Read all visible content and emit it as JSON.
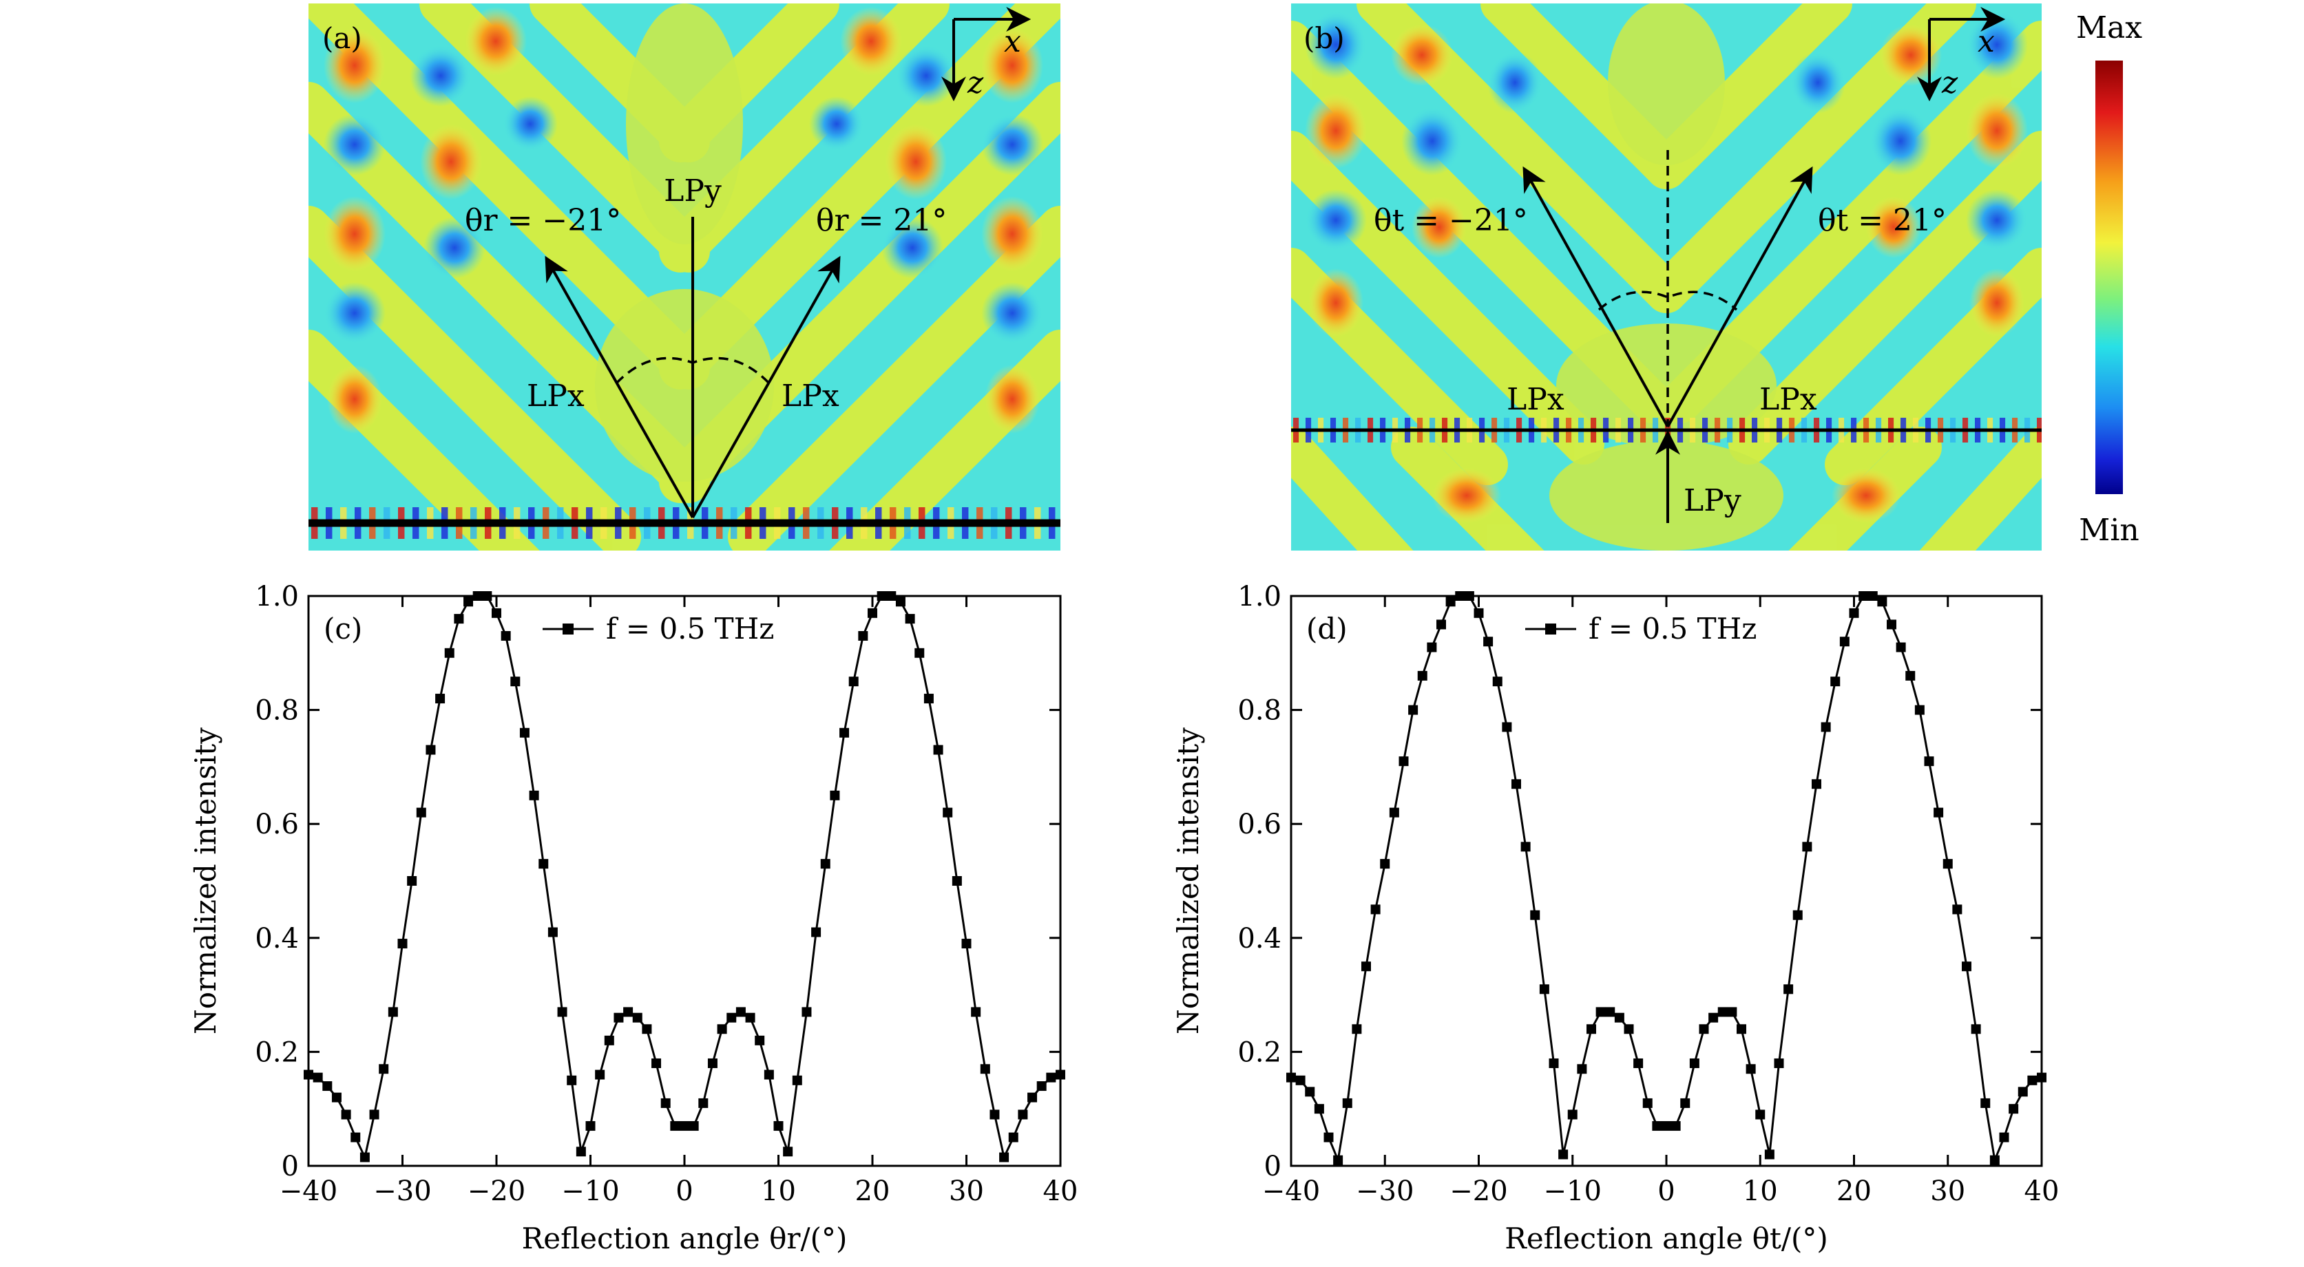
{
  "field_panels": [
    {
      "label": "(a)",
      "axis_x": "x",
      "axis_z": "z",
      "incident_label": "LPy",
      "left_beam_label": "LPx",
      "right_beam_label": "LPx",
      "left_angle_text": "θr = −21°",
      "right_angle_text": "θr = 21°"
    },
    {
      "label": "(b)",
      "axis_x": "x",
      "axis_z": "z",
      "incident_label": "LPy",
      "left_beam_label": "LPx",
      "right_beam_label": "LPx",
      "left_angle_text": "θt = −21°",
      "right_angle_text": "θt = 21°"
    }
  ],
  "colorbar": {
    "max_label": "Max",
    "min_label": "Min",
    "colors": [
      "#8b0000",
      "#e21a1a",
      "#f6a019",
      "#f2f23c",
      "#7df07d",
      "#28e0e6",
      "#1d8ef2",
      "#1522d8",
      "#00008b"
    ]
  },
  "chart_data": [
    {
      "type": "line",
      "panel_label": "(c)",
      "legend": "f = 0.5 THz",
      "xlabel": "Reflection angle θr/(°)",
      "ylabel": "Normalized intensity",
      "xlim": [
        -40,
        40
      ],
      "ylim": [
        0,
        1.0
      ],
      "xticks": [
        -40,
        -30,
        -20,
        -10,
        0,
        10,
        20,
        30,
        40
      ],
      "yticks": [
        0,
        0.2,
        0.4,
        0.6,
        0.8,
        1.0
      ],
      "ytick_labels": [
        "0",
        "0.2",
        "0.4",
        "0.6",
        "0.8",
        "1.0"
      ],
      "grid": false,
      "legend_position": "top-center",
      "series": [
        {
          "marker": "square",
          "color": "#000000",
          "x": [
            -40,
            -39,
            -38,
            -37,
            -36,
            -35,
            -34,
            -33,
            -32,
            -31,
            -30,
            -29,
            -28,
            -27,
            -26,
            -25,
            -24,
            -23,
            -22,
            -21,
            -20,
            -19,
            -18,
            -17,
            -16,
            -15,
            -14,
            -13,
            -12,
            -11,
            -10,
            -9,
            -8,
            -7,
            -6,
            -5,
            -4,
            -3,
            -2,
            -1,
            0,
            1,
            2,
            3,
            4,
            5,
            6,
            7,
            8,
            9,
            10,
            11,
            12,
            13,
            14,
            15,
            16,
            17,
            18,
            19,
            20,
            21,
            22,
            23,
            24,
            25,
            26,
            27,
            28,
            29,
            30,
            31,
            32,
            33,
            34,
            35,
            36,
            37,
            38,
            39,
            40
          ],
          "y": [
            0.16,
            0.155,
            0.14,
            0.12,
            0.09,
            0.05,
            0.015,
            0.09,
            0.17,
            0.27,
            0.39,
            0.5,
            0.62,
            0.73,
            0.82,
            0.9,
            0.96,
            0.99,
            1.0,
            1.0,
            0.97,
            0.93,
            0.85,
            0.76,
            0.65,
            0.53,
            0.41,
            0.27,
            0.15,
            0.025,
            0.07,
            0.16,
            0.22,
            0.26,
            0.27,
            0.26,
            0.24,
            0.18,
            0.11,
            0.07,
            0.07,
            0.07,
            0.11,
            0.18,
            0.24,
            0.26,
            0.27,
            0.26,
            0.22,
            0.16,
            0.07,
            0.025,
            0.15,
            0.27,
            0.41,
            0.53,
            0.65,
            0.76,
            0.85,
            0.93,
            0.97,
            1.0,
            1.0,
            0.99,
            0.96,
            0.9,
            0.82,
            0.73,
            0.62,
            0.5,
            0.39,
            0.27,
            0.17,
            0.09,
            0.015,
            0.05,
            0.09,
            0.12,
            0.14,
            0.155,
            0.16
          ]
        }
      ]
    },
    {
      "type": "line",
      "panel_label": "(d)",
      "legend": "f = 0.5 THz",
      "xlabel": "Reflection angle θt/(°)",
      "ylabel": "Normalized intensity",
      "xlim": [
        -40,
        40
      ],
      "ylim": [
        0,
        1.0
      ],
      "xticks": [
        -40,
        -30,
        -20,
        -10,
        0,
        10,
        20,
        30,
        40
      ],
      "yticks": [
        0,
        0.2,
        0.4,
        0.6,
        0.8,
        1.0
      ],
      "ytick_labels": [
        "0",
        "0.2",
        "0.4",
        "0.6",
        "0.8",
        "1.0"
      ],
      "grid": false,
      "legend_position": "top-center",
      "series": [
        {
          "marker": "square",
          "color": "#000000",
          "x": [
            -40,
            -39,
            -38,
            -37,
            -36,
            -35,
            -34,
            -33,
            -32,
            -31,
            -30,
            -29,
            -28,
            -27,
            -26,
            -25,
            -24,
            -23,
            -22,
            -21,
            -20,
            -19,
            -18,
            -17,
            -16,
            -15,
            -14,
            -13,
            -12,
            -11,
            -10,
            -9,
            -8,
            -7,
            -6,
            -5,
            -4,
            -3,
            -2,
            -1,
            0,
            1,
            2,
            3,
            4,
            5,
            6,
            7,
            8,
            9,
            10,
            11,
            12,
            13,
            14,
            15,
            16,
            17,
            18,
            19,
            20,
            21,
            22,
            23,
            24,
            25,
            26,
            27,
            28,
            29,
            30,
            31,
            32,
            33,
            34,
            35,
            36,
            37,
            38,
            39,
            40
          ],
          "y": [
            0.155,
            0.15,
            0.13,
            0.1,
            0.05,
            0.01,
            0.11,
            0.24,
            0.35,
            0.45,
            0.53,
            0.62,
            0.71,
            0.8,
            0.86,
            0.91,
            0.95,
            0.99,
            1.0,
            1.0,
            0.97,
            0.92,
            0.85,
            0.77,
            0.67,
            0.56,
            0.44,
            0.31,
            0.18,
            0.02,
            0.09,
            0.17,
            0.24,
            0.27,
            0.27,
            0.26,
            0.24,
            0.18,
            0.11,
            0.07,
            0.07,
            0.07,
            0.11,
            0.18,
            0.24,
            0.26,
            0.27,
            0.27,
            0.24,
            0.17,
            0.09,
            0.02,
            0.18,
            0.31,
            0.44,
            0.56,
            0.67,
            0.77,
            0.85,
            0.92,
            0.97,
            1.0,
            1.0,
            0.99,
            0.95,
            0.91,
            0.86,
            0.8,
            0.71,
            0.62,
            0.53,
            0.45,
            0.35,
            0.24,
            0.11,
            0.01,
            0.05,
            0.1,
            0.13,
            0.15,
            0.155
          ]
        }
      ]
    }
  ]
}
